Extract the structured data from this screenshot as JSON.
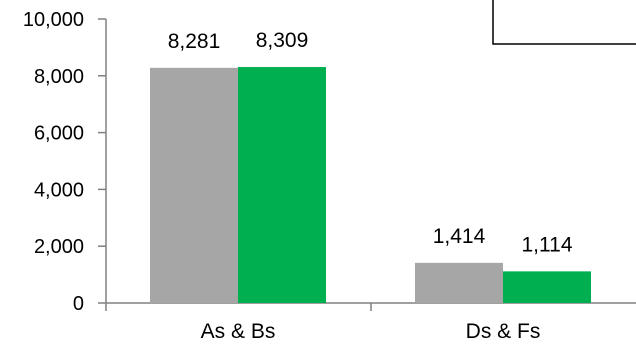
{
  "chart_data": {
    "type": "bar",
    "categories": [
      "As & Bs",
      "Ds & Fs"
    ],
    "series": [
      {
        "values": [
          8281,
          8309
        ],
        "color": "#A6A6A6"
      },
      {
        "values": [
          1414,
          1114
        ],
        "color": "#00B050"
      }
    ],
    "series_layout": "per-category",
    "data_labels": [
      [
        "8,281",
        "8,309"
      ],
      [
        "1,414",
        "1,114"
      ]
    ],
    "ylim": [
      0,
      10000
    ],
    "yticks": [
      0,
      2000,
      4000,
      6000,
      8000,
      10000
    ],
    "ytick_labels": [
      "0",
      "2,000",
      "4,000",
      "6,000",
      "8,000",
      "10,000"
    ],
    "title": "",
    "xlabel": "",
    "ylabel": "",
    "grid": false,
    "legend": "top-right (partially visible, empty box)"
  },
  "colors": {
    "grey_bar": "#A6A6A6",
    "green_bar": "#00B050",
    "axis": "#808080"
  }
}
